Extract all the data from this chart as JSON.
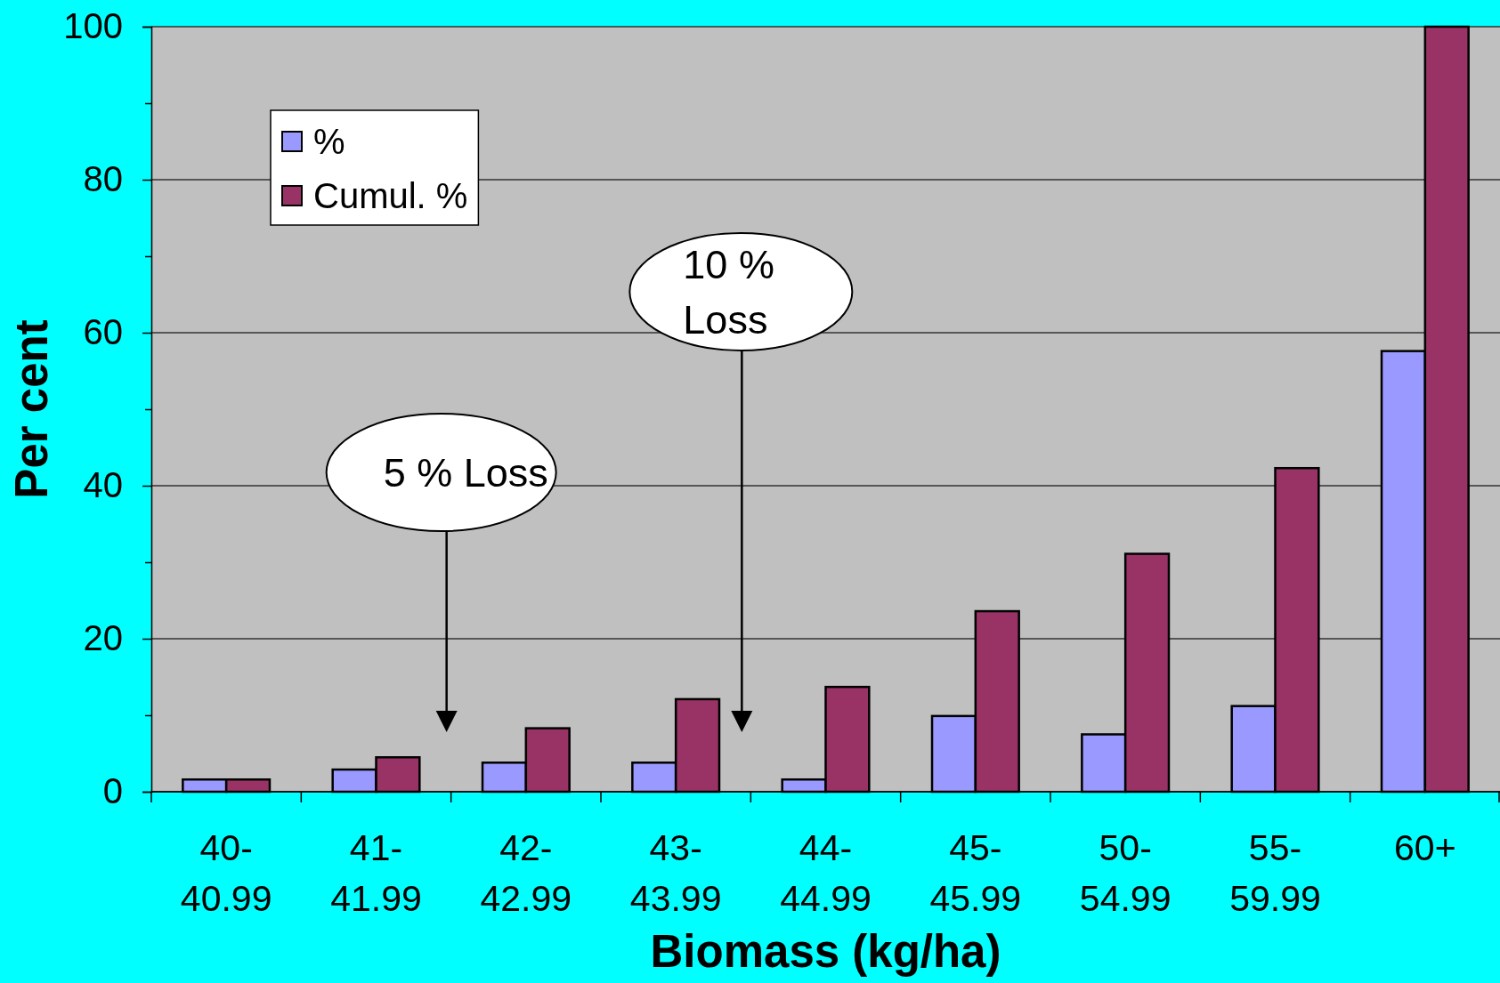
{
  "chart_data": {
    "type": "bar",
    "xlabel": "Biomass (kg/ha)",
    "ylabel": "Per cent",
    "categories": [
      "40-40.99",
      "41-41.99",
      "42-42.99",
      "43-43.99",
      "44-44.99",
      "45-45.99",
      "50-54.99",
      "55-59.99",
      "60+"
    ],
    "series": [
      {
        "name": "%",
        "color": "#9999ff",
        "values": [
          1.6,
          2.9,
          3.8,
          3.8,
          1.6,
          9.9,
          7.5,
          11.2,
          57.6
        ]
      },
      {
        "name": "Cumul. %",
        "color": "#993366",
        "values": [
          1.6,
          4.5,
          8.3,
          12.1,
          13.7,
          23.6,
          31.1,
          42.3,
          100
        ]
      }
    ],
    "ylim": [
      0,
      100
    ],
    "yticks": [
      0,
      {
        "value": 10,
        "label": null
      },
      20,
      {
        "value": 30,
        "label": null
      },
      40,
      {
        "value": 50,
        "label": null
      },
      60,
      {
        "value": 70,
        "label": null
      },
      80,
      {
        "value": 90,
        "label": null
      },
      100
    ],
    "grid": "y",
    "legend": "top left",
    "annotations": [
      "5 % Loss",
      "10 %\nLoss"
    ]
  }
}
